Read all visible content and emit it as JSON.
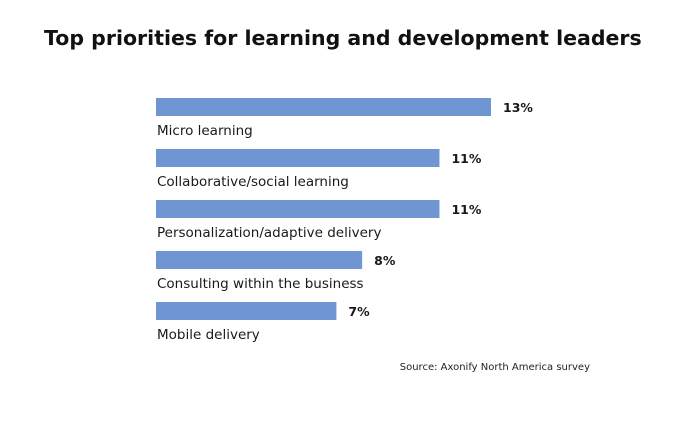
{
  "chart_data": {
    "type": "bar",
    "orientation": "horizontal",
    "title": "Top priorities for learning and development leaders",
    "categories": [
      "Micro learning",
      "Collaborative/social learning",
      "Personalization/adaptive delivery",
      "Consulting within the business",
      "Mobile delivery"
    ],
    "values": [
      13,
      11,
      11,
      8,
      7
    ],
    "value_labels": [
      "13%",
      "11%",
      "11%",
      "8%",
      "7%"
    ],
    "unit": "%",
    "xlim": [
      0,
      13
    ],
    "grid": false,
    "legend": "none",
    "bar_color": "#6f95d3",
    "source": "Source: Axonify North America survey"
  }
}
